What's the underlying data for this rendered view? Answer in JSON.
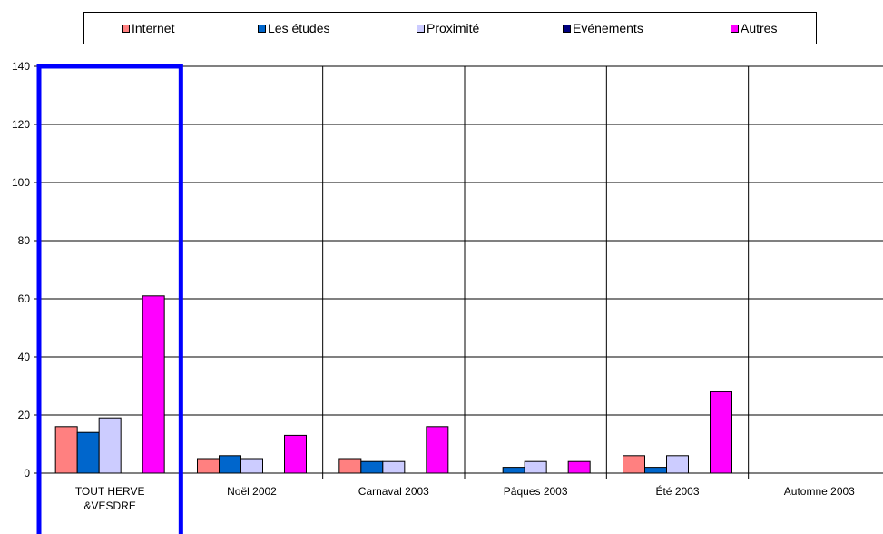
{
  "chart_data": {
    "type": "bar",
    "categories": [
      "TOUT HERVE\n&VESDRE",
      "Noël 2002",
      "Carnaval 2003",
      "Pâques 2003",
      "Été 2003",
      "Automne 2003"
    ],
    "series": [
      {
        "name": "Internet",
        "color": "#ff8080",
        "values": [
          16,
          5,
          5,
          0,
          6,
          0
        ]
      },
      {
        "name": "Les études",
        "color": "#0066cc",
        "values": [
          14,
          6,
          4,
          2,
          2,
          0
        ]
      },
      {
        "name": "Proximité",
        "color": "#ccccff",
        "values": [
          19,
          5,
          4,
          4,
          6,
          0
        ]
      },
      {
        "name": "Evénements",
        "color": "#000080",
        "values": [
          0,
          0,
          0,
          0,
          0,
          0
        ]
      },
      {
        "name": "Autres",
        "color": "#ff00ff",
        "values": [
          61,
          13,
          16,
          4,
          28,
          0
        ]
      }
    ],
    "ylim": [
      0,
      140
    ],
    "yticks": [
      0,
      20,
      40,
      60,
      80,
      100,
      120,
      140
    ],
    "grid": true,
    "legend_position": "top",
    "highlight_category": "TOUT HERVE\n&VESDRE",
    "highlight_color": "#0000ff"
  }
}
